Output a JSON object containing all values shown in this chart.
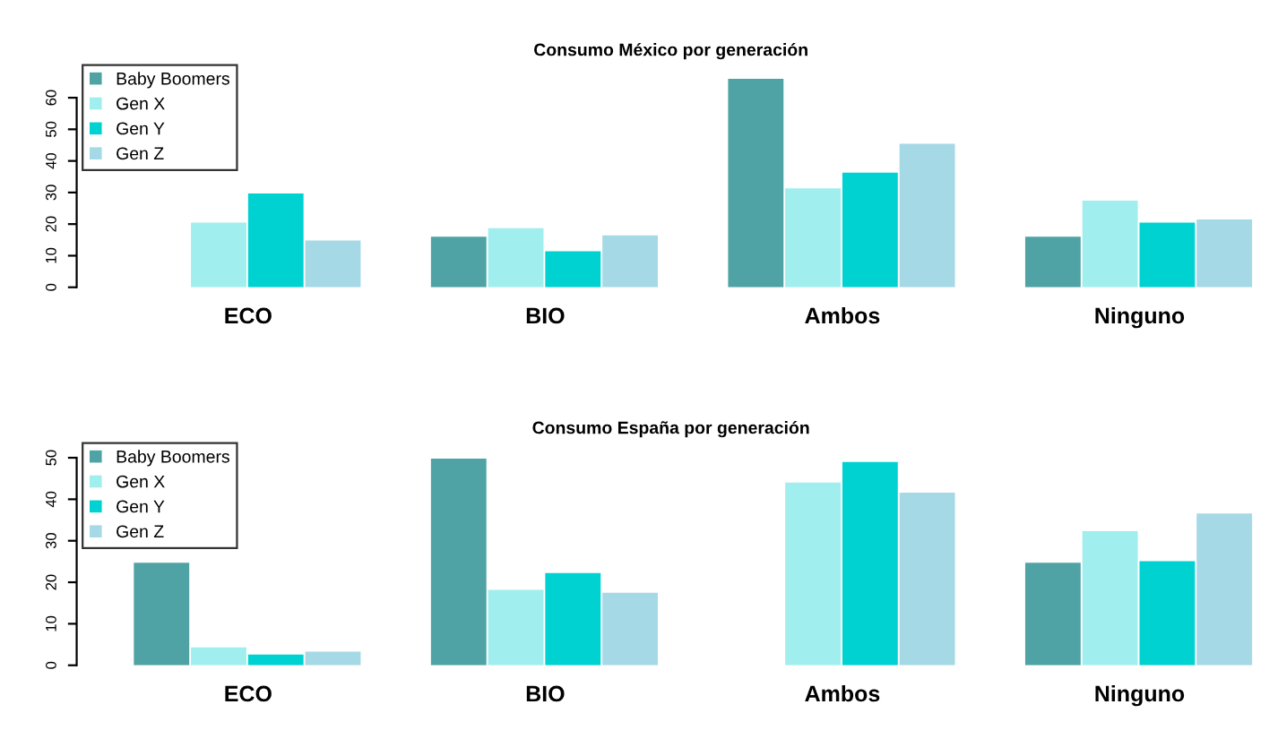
{
  "chart_data": [
    {
      "type": "bar",
      "title": "Consumo México por generación",
      "categories": [
        "ECO",
        "BIO",
        "Ambos",
        "Ninguno"
      ],
      "ylim": [
        0,
        67
      ],
      "yticks": [
        0,
        10,
        20,
        30,
        40,
        50,
        60
      ],
      "grid": false,
      "legend": "top left",
      "series": [
        {
          "name": "Baby Boomers",
          "color": "#4fa3a5",
          "values": [
            0,
            16,
            66,
            16
          ]
        },
        {
          "name": "Gen X",
          "color": "#a0eeee",
          "values": [
            20.5,
            18.7,
            31.3,
            27.4
          ]
        },
        {
          "name": "Gen Y",
          "color": "#00d2d2",
          "values": [
            29.7,
            11.4,
            36.3,
            20.5
          ]
        },
        {
          "name": "Gen Z",
          "color": "#a6d9e6",
          "values": [
            14.8,
            16.4,
            45.4,
            21.5
          ]
        }
      ]
    },
    {
      "type": "bar",
      "title": "Consumo España por generación",
      "categories": [
        "ECO",
        "BIO",
        "Ambos",
        "Ninguno"
      ],
      "ylim": [
        0,
        51
      ],
      "yticks": [
        0,
        10,
        20,
        30,
        40,
        50
      ],
      "grid": false,
      "legend": "top left",
      "series": [
        {
          "name": "Baby Boomers",
          "color": "#4fa3a5",
          "values": [
            24.7,
            49.8,
            0,
            24.7
          ]
        },
        {
          "name": "Gen X",
          "color": "#a0eeee",
          "values": [
            4.3,
            18.2,
            44,
            32.3
          ]
        },
        {
          "name": "Gen Y",
          "color": "#00d2d2",
          "values": [
            2.6,
            22.2,
            49,
            25.1
          ]
        },
        {
          "name": "Gen Z",
          "color": "#a6d9e6",
          "values": [
            3.3,
            17.5,
            41.6,
            36.6
          ]
        }
      ]
    }
  ]
}
